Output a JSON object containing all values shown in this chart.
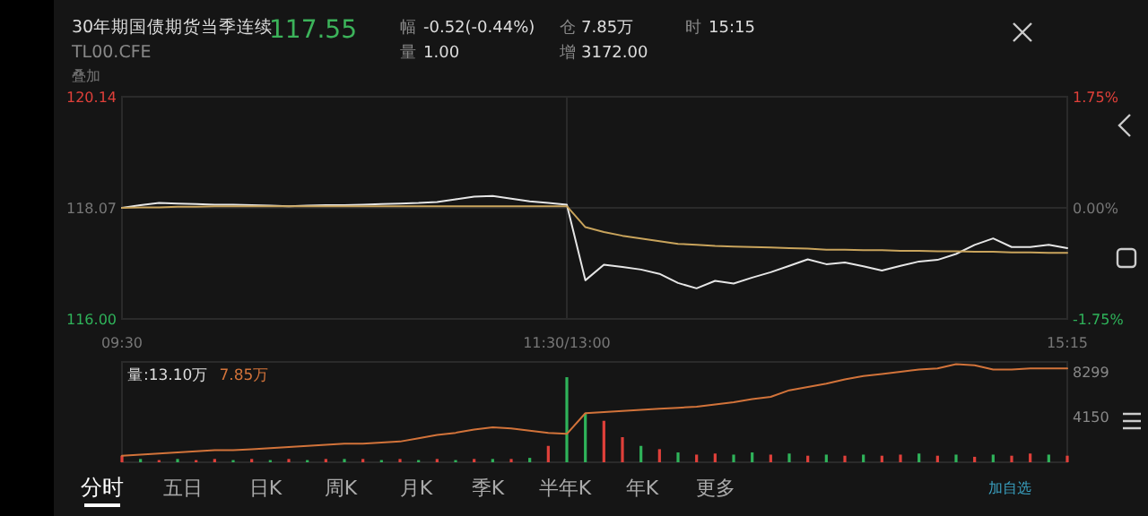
{
  "chart_data": [
    {
      "type": "other",
      "title": "30年期国债期货当季连续",
      "subtitle": "TL00.CFE",
      "annotations": [
        "117.55",
        "幅",
        "-0.52(-0.44%)",
        "仓",
        "7.85万",
        "时",
        "15:15",
        "量",
        "1.00",
        "增",
        "3172.00",
        "叠加"
      ]
    },
    {
      "type": "line",
      "categories": [
        "09:30",
        null,
        null,
        null,
        null,
        null,
        null,
        null,
        null,
        null,
        null,
        null,
        null,
        null,
        null,
        null,
        null,
        null,
        null,
        null,
        null,
        null,
        null,
        null,
        "11:30/13:00",
        null,
        null,
        null,
        null,
        null,
        null,
        null,
        null,
        null,
        null,
        null,
        null,
        null,
        null,
        null,
        null,
        null,
        null,
        null,
        null,
        null,
        null,
        null,
        null,
        null,
        null,
        "15:15"
      ],
      "ylim": [
        116.0,
        120.14
      ],
      "yticks": [
        {
          "value": 116,
          "label": "116.00"
        },
        {
          "value": 118.07,
          "label": "118.07"
        },
        {
          "value": 120.14,
          "label": "120.14"
        }
      ],
      "y2lim": [
        -1.75,
        1.75
      ],
      "y2ticks": [
        {
          "value": -1.75,
          "label": "-1.75%"
        },
        {
          "value": 0,
          "label": "0.00%"
        },
        {
          "value": 1.75,
          "label": "1.75%"
        }
      ],
      "grid": true,
      "series": [
        {
          "color": "#e6e6e6",
          "values": [
            118.07,
            118.12,
            118.16,
            118.15,
            118.14,
            118.13,
            118.13,
            118.12,
            118.11,
            118.1,
            118.11,
            118.12,
            118.12,
            118.13,
            118.14,
            118.15,
            118.16,
            118.18,
            118.23,
            118.28,
            118.29,
            118.24,
            118.19,
            118.16,
            118.13,
            116.72,
            117.01,
            116.97,
            116.92,
            116.84,
            116.67,
            116.57,
            116.71,
            116.66,
            116.77,
            116.87,
            116.99,
            117.11,
            117.02,
            117.05,
            116.98,
            116.9,
            116.99,
            117.07,
            117.1,
            117.21,
            117.38,
            117.5,
            117.34,
            117.34,
            117.38,
            117.32
          ]
        },
        {
          "color": "#c9a45c",
          "values": [
            118.07,
            118.08,
            118.08,
            118.09,
            118.09,
            118.1,
            118.1,
            118.1,
            118.1,
            118.1,
            118.1,
            118.1,
            118.1,
            118.1,
            118.1,
            118.1,
            118.1,
            118.1,
            118.1,
            118.1,
            118.1,
            118.1,
            118.1,
            118.1,
            118.1,
            117.71,
            117.62,
            117.55,
            117.5,
            117.45,
            117.4,
            117.38,
            117.36,
            117.35,
            117.34,
            117.33,
            117.32,
            117.31,
            117.29,
            117.29,
            117.28,
            117.28,
            117.27,
            117.27,
            117.26,
            117.26,
            117.25,
            117.25,
            117.24,
            117.24,
            117.23,
            117.23
          ]
        }
      ]
    },
    {
      "type": "bar",
      "categories": [
        null,
        null,
        null,
        null,
        null,
        null,
        null,
        null,
        null,
        null,
        null,
        null,
        null,
        null,
        null,
        null,
        null,
        null,
        null,
        null,
        null,
        null,
        null,
        null,
        null,
        null,
        null,
        null,
        null,
        null,
        null,
        null,
        null,
        null,
        null,
        null,
        null,
        null,
        null,
        null,
        null,
        null,
        null,
        null,
        null,
        null,
        null,
        null,
        null,
        null,
        null,
        null
      ],
      "ylim": [
        0,
        9200
      ],
      "yticks": [
        4150,
        8299
      ],
      "tick_labels": "y",
      "legend": "top left",
      "annotations": [
        "量:13.10万"
      ],
      "series": [
        {
          "type": "bar",
          "values": [
            600,
            300,
            200,
            300,
            200,
            300,
            200,
            300,
            200,
            300,
            200,
            300,
            300,
            300,
            200,
            300,
            200,
            300,
            200,
            300,
            300,
            300,
            400,
            1500,
            7800,
            4500,
            3800,
            2300,
            1500,
            1200,
            900,
            700,
            800,
            700,
            900,
            700,
            800,
            600,
            700,
            600,
            700,
            600,
            700,
            800,
            600,
            700,
            500,
            700,
            600,
            800,
            700,
            600
          ],
          "colors": [
            "#e0403a",
            "#2fb35a",
            "#e0403a",
            "#2fb35a",
            "#e0403a",
            "#e0403a",
            "#2fb35a",
            "#e0403a",
            "#2fb35a",
            "#e0403a",
            "#2fb35a",
            "#e0403a",
            "#2fb35a",
            "#e0403a",
            "#2fb35a",
            "#e0403a",
            "#2fb35a",
            "#e0403a",
            "#2fb35a",
            "#e0403a",
            "#2fb35a",
            "#e0403a",
            "#2fb35a",
            "#e0403a",
            "#2fb35a",
            "#2fb35a",
            "#e0403a",
            "#e0403a",
            "#2fb35a",
            "#e0403a",
            "#2fb35a",
            "#e0403a",
            "#e0403a",
            "#2fb35a",
            "#2fb35a",
            "#e0403a",
            "#2fb35a",
            "#e0403a",
            "#2fb35a",
            "#e0403a",
            "#2fb35a",
            "#e0403a",
            "#e0403a",
            "#2fb35a",
            "#e0403a",
            "#2fb35a",
            "#e0403a",
            "#2fb35a",
            "#e0403a",
            "#e0403a",
            "#2fb35a",
            "#e0403a"
          ]
        },
        {
          "type": "line",
          "name": "7.85万",
          "color": "#d2733a",
          "values": [
            600,
            700,
            800,
            900,
            1000,
            1100,
            1100,
            1200,
            1300,
            1400,
            1500,
            1600,
            1700,
            1700,
            1800,
            1900,
            2200,
            2500,
            2700,
            3000,
            3200,
            3100,
            2900,
            2700,
            2600,
            4500,
            4600,
            4700,
            4800,
            4900,
            5000,
            5100,
            5300,
            5500,
            5800,
            6000,
            6600,
            6900,
            7200,
            7600,
            7900,
            8100,
            8300,
            8500,
            8600,
            9000,
            8900,
            8500,
            8500,
            8600,
            8600,
            8600
          ]
        }
      ]
    },
    {
      "type": "other",
      "annotations": [
        "分时",
        "五日",
        "日K",
        "周K",
        "月K",
        "季K",
        "半年K",
        "年K",
        "更多",
        "加自选"
      ]
    }
  ]
}
